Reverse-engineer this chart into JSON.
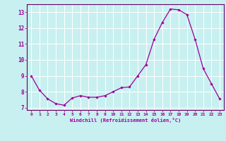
{
  "x": [
    0,
    1,
    2,
    3,
    4,
    5,
    6,
    7,
    8,
    9,
    10,
    11,
    12,
    13,
    14,
    15,
    16,
    17,
    18,
    19,
    20,
    21,
    22,
    23
  ],
  "y": [
    9.0,
    8.1,
    7.55,
    7.25,
    7.15,
    7.6,
    7.75,
    7.65,
    7.65,
    7.75,
    8.0,
    8.25,
    8.3,
    9.0,
    9.7,
    11.3,
    12.35,
    13.2,
    13.15,
    12.85,
    11.3,
    9.45,
    8.5,
    7.55
  ],
  "line_color": "#990099",
  "marker": "D",
  "marker_size": 1.8,
  "bg_color": "#c8f0f0",
  "grid_color": "#ffffff",
  "axis_color": "#660066",
  "tick_color": "#990099",
  "xlabel": "Windchill (Refroidissement éolien,°C)",
  "xlim": [
    -0.5,
    23.5
  ],
  "ylim": [
    6.85,
    13.5
  ],
  "yticks": [
    7,
    8,
    9,
    10,
    11,
    12,
    13
  ],
  "xticks": [
    0,
    1,
    2,
    3,
    4,
    5,
    6,
    7,
    8,
    9,
    10,
    11,
    12,
    13,
    14,
    15,
    16,
    17,
    18,
    19,
    20,
    21,
    22,
    23
  ]
}
